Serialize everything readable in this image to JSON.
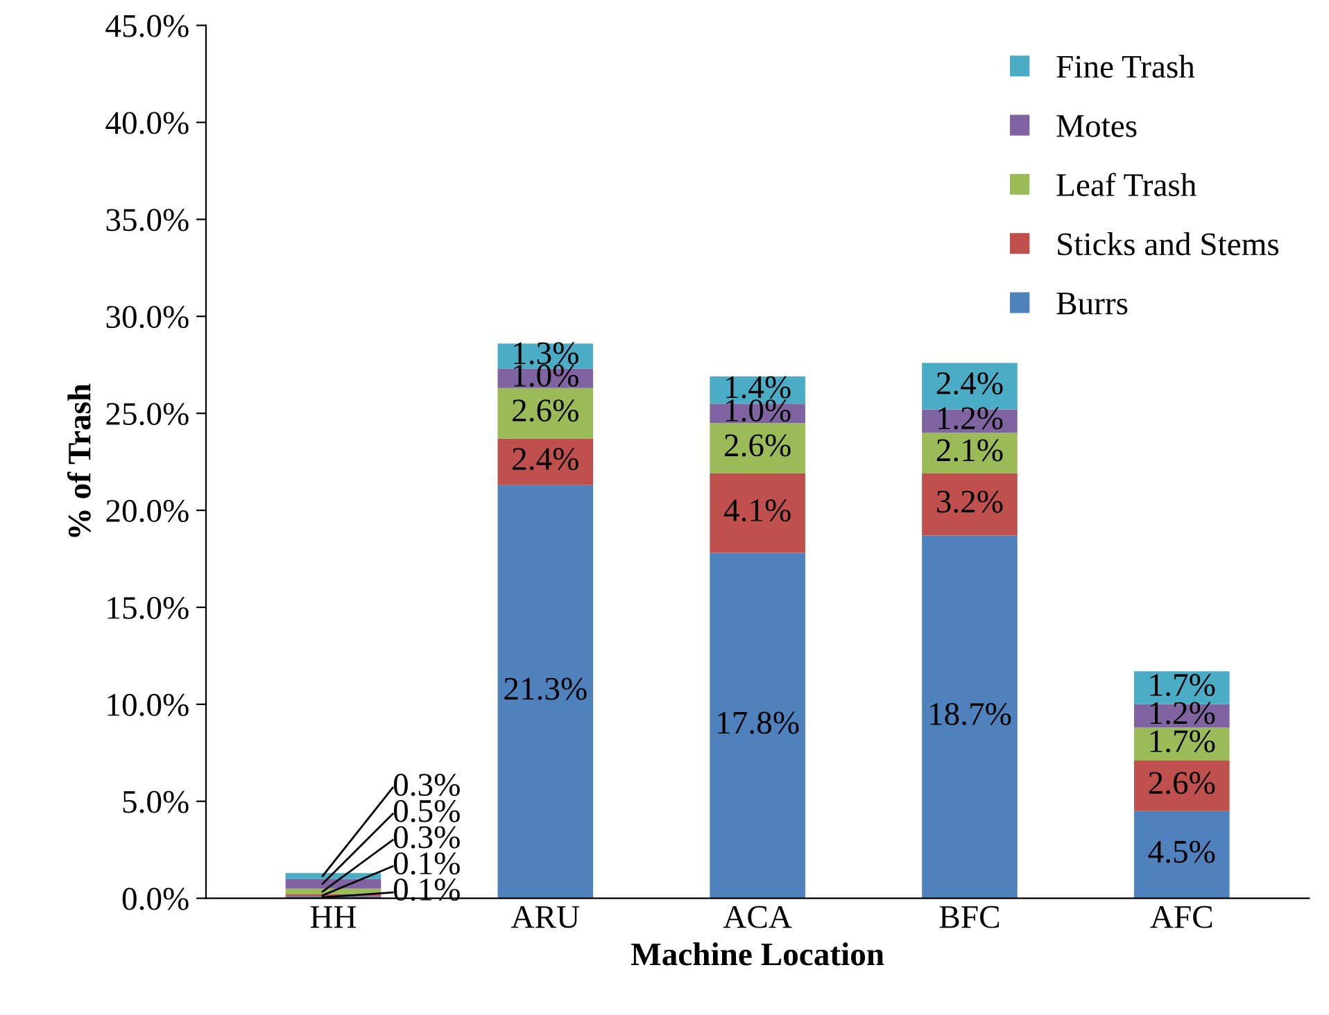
{
  "chart_data": {
    "type": "bar",
    "stacked": true,
    "xlabel": "Machine Location",
    "ylabel": "% of Trash",
    "categories": [
      "HH",
      "ARU",
      "ACA",
      "BFC",
      "AFC"
    ],
    "series": [
      {
        "name": "Burrs",
        "color": "#4f81bd",
        "values": [
          0.1,
          21.3,
          17.8,
          18.7,
          4.5
        ],
        "value_labels": [
          "0.1%",
          "21.3%",
          "17.8%",
          "18.7%",
          "4.5%"
        ]
      },
      {
        "name": "Sticks and Stems",
        "color": "#c0504d",
        "values": [
          0.1,
          2.4,
          4.1,
          3.2,
          2.6
        ],
        "value_labels": [
          "0.1%",
          "2.4%",
          "4.1%",
          "3.2%",
          "2.6%"
        ]
      },
      {
        "name": "Leaf Trash",
        "color": "#9bbb59",
        "values": [
          0.3,
          2.6,
          2.6,
          2.1,
          1.7
        ],
        "value_labels": [
          "0.3%",
          "2.6%",
          "2.6%",
          "2.1%",
          "1.7%"
        ]
      },
      {
        "name": "Motes",
        "color": "#8064a2",
        "values": [
          0.5,
          1.0,
          1.0,
          1.2,
          1.2
        ],
        "value_labels": [
          "0.5%",
          "1.0%",
          "1.0%",
          "1.2%",
          "1.2%"
        ]
      },
      {
        "name": "Fine Trash",
        "color": "#4bacc6",
        "values": [
          0.3,
          1.3,
          1.4,
          2.4,
          1.7
        ],
        "value_labels": [
          "0.3%",
          "1.3%",
          "1.4%",
          "2.4%",
          "1.7%"
        ]
      }
    ],
    "ylim": [
      0,
      45
    ],
    "yticks": [
      {
        "value": 0,
        "label": "0.0%"
      },
      {
        "value": 5,
        "label": "5.0%"
      },
      {
        "value": 10,
        "label": "10.0%"
      },
      {
        "value": 15,
        "label": "15.0%"
      },
      {
        "value": 20,
        "label": "20.0%"
      },
      {
        "value": 25,
        "label": "25.0%"
      },
      {
        "value": 30,
        "label": "30.0%"
      },
      {
        "value": 35,
        "label": "35.0%"
      },
      {
        "value": 40,
        "label": "40.0%"
      },
      {
        "value": 45,
        "label": "45.0%"
      }
    ],
    "grid": false,
    "legend": "top right"
  }
}
